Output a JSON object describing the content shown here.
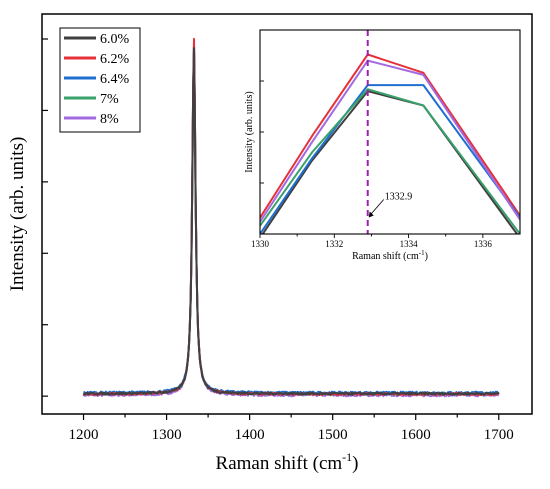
{
  "chart_data": [
    {
      "type": "line",
      "xlabel": "Raman shift (cm",
      "xlabel_sup": "-1",
      "xlabel_close": ")",
      "ylabel": "Intensity (arb. units)",
      "xlim": [
        1150,
        1740
      ],
      "ylim": [
        -0.05,
        1.07
      ],
      "x_ticks": [
        1200,
        1300,
        1400,
        1500,
        1600,
        1700
      ],
      "y_ticks_unlabeled": [
        0.0,
        0.2,
        0.4,
        0.6,
        0.8,
        1.0
      ],
      "grid": false,
      "legend_position": "top-left",
      "peak_x": 1332.9,
      "series": [
        {
          "name": "6.0%",
          "color": "#404040",
          "baseline": 0.0068,
          "peak": 0.975
        },
        {
          "name": "6.2%",
          "color": "#e5313a",
          "baseline": 0.0058,
          "peak": 1.0
        },
        {
          "name": "6.4%",
          "color": "#1f6fd1",
          "baseline": 0.0095,
          "peak": 0.982
        },
        {
          "name": "7%",
          "color": "#3aa16b",
          "baseline": 0.007,
          "peak": 0.978
        },
        {
          "name": "8%",
          "color": "#a36ae0",
          "baseline": 0.0025,
          "peak": 0.99
        }
      ]
    },
    {
      "type": "line",
      "xlabel": "Raman shift (cm",
      "xlabel_sup": "-1",
      "xlabel_close": ")",
      "ylabel": "Intensity (arb. units)",
      "xlim": [
        1330,
        1337
      ],
      "ylim": [
        0,
        1
      ],
      "x_ticks": [
        1330,
        1332,
        1334,
        1336
      ],
      "annotation": "1332.9",
      "marker_x": 1332.9,
      "grid": false,
      "series": [
        {
          "name": "6.0%",
          "color": "#404040",
          "x": [
            1330,
            1331.4,
            1332.9,
            1334.4,
            1337
          ],
          "y": [
            -0.02,
            0.36,
            0.7,
            0.63,
            -0.02
          ]
        },
        {
          "name": "6.2%",
          "color": "#e5313a",
          "x": [
            1330,
            1331.4,
            1332.9,
            1334.4,
            1337
          ],
          "y": [
            0.08,
            0.48,
            0.88,
            0.79,
            0.09
          ]
        },
        {
          "name": "6.4%",
          "color": "#1f6fd1",
          "x": [
            1330,
            1331.4,
            1332.9,
            1334.4,
            1337
          ],
          "y": [
            0.0,
            0.37,
            0.73,
            0.73,
            0.08
          ]
        },
        {
          "name": "7%",
          "color": "#3aa16b",
          "x": [
            1330,
            1331.4,
            1332.9,
            1334.4,
            1337
          ],
          "y": [
            0.04,
            0.4,
            0.71,
            0.63,
            0.0
          ]
        },
        {
          "name": "8%",
          "color": "#a36ae0",
          "x": [
            1330,
            1331.4,
            1332.9,
            1334.4,
            1337
          ],
          "y": [
            0.06,
            0.45,
            0.85,
            0.78,
            0.07
          ]
        }
      ]
    }
  ]
}
